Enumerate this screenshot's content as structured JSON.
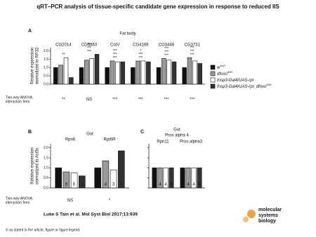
{
  "title": "qRT–PCR analysis of tissue-specific candidate gene expression in response to reduced IIS",
  "citation": "Luke S Tain et al. Mol Syst Biol 2017;13:939",
  "copyright": "© as stated in the article, figure or figure legend",
  "logo": [
    "molecular",
    "systems",
    "biology"
  ],
  "chart_data": [
    {
      "type": "bar",
      "panel": "A",
      "title": [
        "Fat body"
      ],
      "ylabel": [
        "Relative expression",
        "normalized to RP32"
      ],
      "categories": [
        "CG2014",
        "CG6463",
        "CoIV",
        "CG4169",
        "CG3446",
        "CG3731"
      ],
      "series": [
        {
          "name": "w",
          "name_sup": "Dah",
          "color": "#111111",
          "values": [
            1.0,
            1.0,
            1.0,
            1.0,
            1.0,
            1.0
          ]
        },
        {
          "name": "dfoxo",
          "name_sup": "Δ94",
          "color": "#9a9a9a",
          "values": [
            1.15,
            1.45,
            1.4,
            1.4,
            1.55,
            1.6
          ]
        },
        {
          "name": "Insp3-Gal4/UAS-rpr",
          "color": "#ffffff",
          "values": [
            1.6,
            1.55,
            1.35,
            1.4,
            1.45,
            1.4
          ]
        },
        {
          "name": "Insp3-Gal4/UAS-rpr, dfoxo",
          "name_sup": "Δ94",
          "color": "#333333",
          "values": [
            0.4,
            1.8,
            1.35,
            1.35,
            1.35,
            1.25
          ]
        }
      ],
      "ylim": [
        0,
        2.2
      ],
      "yticks": [
        {
          "value": 0,
          "label": "0.0"
        },
        {
          "value": 0.5,
          "label": "0.5"
        },
        {
          "value": 1,
          "label": "1.0"
        },
        {
          "value": 1.5,
          "label": "1.5"
        },
        {
          "value": 2,
          "label": "2.0"
        }
      ],
      "annotations": [
        [
          "**"
        ],
        [
          "***",
          "***",
          "***"
        ],
        [
          "***",
          "***",
          "***"
        ],
        [
          "***",
          "***",
          "*"
        ],
        [
          "***",
          "***",
          "***"
        ],
        [
          "***",
          "***",
          "***"
        ]
      ],
      "anova_label": [
        "Two-way ANOVA",
        "interaction term"
      ],
      "anova": [
        "**",
        "NS",
        "***",
        "***",
        "***",
        "***"
      ]
    },
    {
      "type": "bar",
      "panel": "B",
      "title": [
        "Gut"
      ],
      "ylabel": [
        "Relative expression",
        "normalized to Act5c"
      ],
      "categories": [
        "Rpn6",
        "Rpt6R"
      ],
      "series": [
        {
          "color": "#111111",
          "values": [
            1.0,
            1.0
          ],
          "n": [
            6,
            4
          ]
        },
        {
          "color": "#9a9a9a",
          "values": [
            0.8,
            1.35
          ],
          "n": [
            6,
            4
          ]
        },
        {
          "color": "#ffffff",
          "values": [
            0.75,
            0.9
          ],
          "n": [
            6,
            3
          ]
        },
        {
          "color": "#333333",
          "values": [
            0.6,
            1.85
          ],
          "n": [
            3,
            3
          ]
        }
      ],
      "ylim": [
        0,
        2.2
      ],
      "yticks": [
        {
          "value": 0,
          "label": "0.0"
        },
        {
          "value": 0.5,
          "label": "0.5"
        },
        {
          "value": 1,
          "label": "1.0"
        },
        {
          "value": 1.5,
          "label": "1.5"
        },
        {
          "value": 2,
          "label": "2.0"
        }
      ],
      "anova_label": [
        "Two-way ANOVA",
        "interaction term"
      ],
      "anova": [
        "NS",
        "*"
      ]
    },
    {
      "type": "bar",
      "panel": "C",
      "title": [
        "Gut",
        "Pros alpha 4"
      ],
      "categories": [
        "Rpn11",
        "Pros alpha3"
      ],
      "series": [
        {
          "color": "#111111",
          "values": [
            1.0,
            1.0
          ],
          "n": [
            4,
            4
          ]
        },
        {
          "color": "#9a9a9a",
          "values": [
            1.0,
            1.0
          ],
          "n": [
            4,
            4
          ]
        },
        {
          "color": "#ffffff",
          "values": [
            1.0,
            1.0
          ],
          "n": [
            4,
            4
          ]
        },
        {
          "color": "#333333",
          "values": [
            1.0,
            1.0
          ],
          "n": [
            4,
            4
          ]
        }
      ],
      "ylim": [
        0,
        2.2
      ],
      "yticks": [
        {
          "value": 0,
          "label": "0.0"
        },
        {
          "value": 0.5,
          "label": "0.5"
        },
        {
          "value": 1,
          "label": "1.0"
        },
        {
          "value": 1.5,
          "label": "1.5"
        },
        {
          "value": 2,
          "label": "2.0"
        }
      ]
    }
  ]
}
